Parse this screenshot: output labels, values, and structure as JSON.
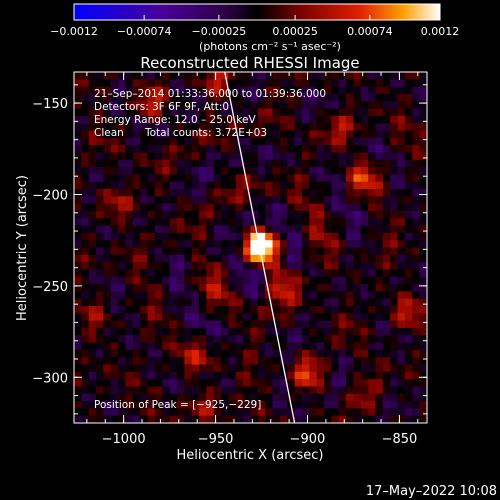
{
  "chart_data": {
    "type": "heatmap",
    "title": "Reconstructed RHESSI Image",
    "xlabel": "Heliocentric X (arcsec)",
    "ylabel": "Heliocentric Y (arcsec)",
    "xlim": [
      -1027,
      -835
    ],
    "ylim": [
      -325,
      -133
    ],
    "x_ticks": [
      -1000,
      -950,
      -900,
      -850
    ],
    "x_tick_labels": [
      "−1000",
      "−950",
      "−900",
      "−850"
    ],
    "y_ticks": [
      -150,
      -200,
      -250,
      -300
    ],
    "y_tick_labels": [
      "−150",
      "−200",
      "−250",
      "−300"
    ],
    "colorbar": {
      "range": [
        -0.0012,
        0.0012
      ],
      "ticks": [
        -0.0012,
        -0.00074,
        -0.00025,
        0.00025,
        0.00074,
        0.0012
      ],
      "tick_labels": [
        "−0.0012",
        "−0.00074",
        "−0.00025",
        "0.00025",
        "0.00074",
        "0.0012"
      ],
      "unit_label": "(photons cm⁻² s⁻¹ asec⁻²)"
    },
    "annotations": [
      "21–Sep–2014 01:33:36.000 to 01:39:36.000",
      "Detectors: 3F 6F 9F, Att:0",
      "Energy Range: 12.0 – 25.0 keV",
      "Clean",
      "Total counts: 3.72E+03"
    ],
    "peak_label": "Position of Peak = [−925,−229]",
    "peak": [
      -925,
      -229
    ],
    "limb_line": [
      [
        -945,
        -133
      ],
      [
        -907,
        -325
      ]
    ],
    "sources": [
      {
        "x": -925,
        "y": -229,
        "amp": 1.0
      },
      {
        "x": -915,
        "y": -248,
        "amp": 0.45
      },
      {
        "x": -1003,
        "y": -205,
        "amp": 0.3
      },
      {
        "x": -985,
        "y": -150,
        "amp": 0.3
      },
      {
        "x": -948,
        "y": -138,
        "amp": 0.3
      },
      {
        "x": -870,
        "y": -190,
        "amp": 0.35
      },
      {
        "x": -880,
        "y": -165,
        "amp": 0.25
      },
      {
        "x": -845,
        "y": -265,
        "amp": 0.35
      },
      {
        "x": -960,
        "y": -290,
        "amp": 0.25
      },
      {
        "x": -900,
        "y": -299,
        "amp": 0.4
      },
      {
        "x": -955,
        "y": -315,
        "amp": 0.3
      },
      {
        "x": -1015,
        "y": -265,
        "amp": 0.2
      },
      {
        "x": -870,
        "y": -310,
        "amp": 0.2
      }
    ]
  },
  "footer": {
    "timestamp": "17–May–2022 10:08"
  }
}
